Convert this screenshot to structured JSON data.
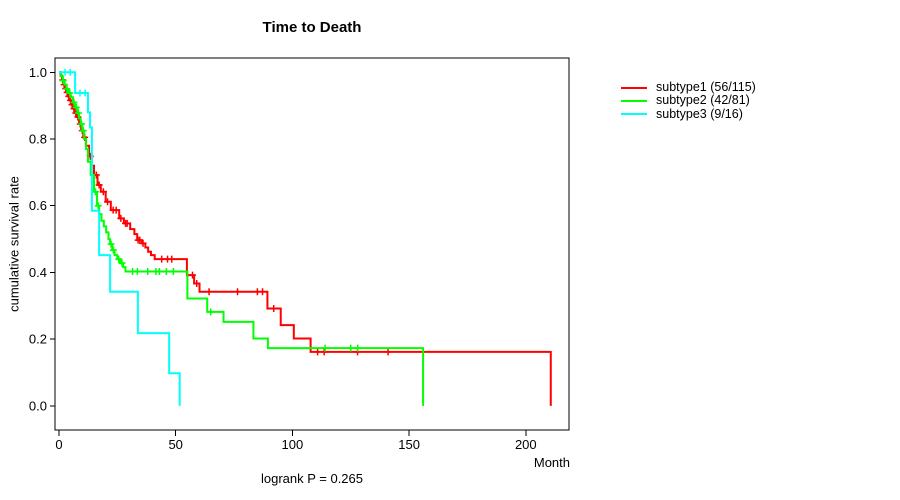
{
  "chart_data": {
    "type": "line",
    "variant": "kaplan-meier-step",
    "title": "Time to Death",
    "xlabel": "Month",
    "ylabel": "cumulative survival rate",
    "annotation": "logrank P = 0.265",
    "xlim": [
      0,
      220
    ],
    "ylim": [
      0.0,
      1.0
    ],
    "xticks": [
      0,
      50,
      100,
      150,
      200
    ],
    "yticks": [
      0.0,
      0.2,
      0.4,
      0.6,
      0.8,
      1.0
    ],
    "grid": false,
    "legend_position": "right-top",
    "series": [
      {
        "key": "subtype1",
        "name": "subtype1 (56/115)",
        "events": "56/115",
        "color": "#ff0000",
        "steps": [
          [
            0,
            1
          ],
          [
            0.7,
            0.99
          ],
          [
            1.3,
            0.977
          ],
          [
            2,
            0.963
          ],
          [
            2.6,
            0.951
          ],
          [
            3.2,
            0.94
          ],
          [
            3.9,
            0.928
          ],
          [
            4.5,
            0.916
          ],
          [
            5.2,
            0.903
          ],
          [
            6,
            0.891
          ],
          [
            6.8,
            0.878
          ],
          [
            7.7,
            0.866
          ],
          [
            8.6,
            0.845
          ],
          [
            9.5,
            0.825
          ],
          [
            10.4,
            0.805
          ],
          [
            11.5,
            0.78
          ],
          [
            12.9,
            0.748
          ],
          [
            14,
            0.72
          ],
          [
            15,
            0.692
          ],
          [
            16.5,
            0.662
          ],
          [
            17.9,
            0.642
          ],
          [
            20,
            0.612
          ],
          [
            22.2,
            0.587
          ],
          [
            25.8,
            0.562
          ],
          [
            27.8,
            0.547
          ],
          [
            30.5,
            0.53
          ],
          [
            32.3,
            0.515
          ],
          [
            33.5,
            0.497
          ],
          [
            35.5,
            0.487
          ],
          [
            37,
            0.475
          ],
          [
            38.2,
            0.462
          ],
          [
            39.4,
            0.452
          ],
          [
            41,
            0.44
          ],
          [
            54.8,
            0.392
          ],
          [
            57.9,
            0.367
          ],
          [
            60.2,
            0.342
          ],
          [
            89.3,
            0.292
          ],
          [
            95,
            0.242
          ],
          [
            100.6,
            0.202
          ],
          [
            107.8,
            0.162
          ],
          [
            210.7,
            0.162
          ],
          [
            210.7,
            0
          ]
        ],
        "censors": [
          [
            1.6,
            0.977
          ],
          [
            2.2,
            0.963
          ],
          [
            2.9,
            0.951
          ],
          [
            3.5,
            0.94
          ],
          [
            4.2,
            0.928
          ],
          [
            4.9,
            0.916
          ],
          [
            5.6,
            0.903
          ],
          [
            6.4,
            0.891
          ],
          [
            7.2,
            0.878
          ],
          [
            8.1,
            0.866
          ],
          [
            9.1,
            0.845
          ],
          [
            10,
            0.825
          ],
          [
            11,
            0.805
          ],
          [
            13.4,
            0.748
          ],
          [
            16,
            0.692
          ],
          [
            17.2,
            0.662
          ],
          [
            19,
            0.642
          ],
          [
            20.8,
            0.612
          ],
          [
            23.2,
            0.587
          ],
          [
            24.5,
            0.587
          ],
          [
            26.5,
            0.562
          ],
          [
            28.5,
            0.547
          ],
          [
            29.2,
            0.547
          ],
          [
            33.9,
            0.497
          ],
          [
            34.6,
            0.497
          ],
          [
            36,
            0.487
          ],
          [
            44,
            0.44
          ],
          [
            46.5,
            0.44
          ],
          [
            48.3,
            0.44
          ],
          [
            57.2,
            0.392
          ],
          [
            59,
            0.367
          ],
          [
            64.3,
            0.342
          ],
          [
            76.5,
            0.342
          ],
          [
            85,
            0.342
          ],
          [
            87.2,
            0.342
          ],
          [
            92,
            0.292
          ],
          [
            110.8,
            0.162
          ],
          [
            113.6,
            0.162
          ],
          [
            127.9,
            0.162
          ],
          [
            141,
            0.162
          ]
        ]
      },
      {
        "key": "subtype2",
        "name": "subtype2 (42/81)",
        "events": "42/81",
        "color": "#00ff00",
        "steps": [
          [
            0,
            1
          ],
          [
            0.8,
            0.988
          ],
          [
            1.6,
            0.975
          ],
          [
            2.4,
            0.963
          ],
          [
            3.2,
            0.95
          ],
          [
            4,
            0.938
          ],
          [
            5,
            0.925
          ],
          [
            6,
            0.91
          ],
          [
            7,
            0.895
          ],
          [
            8,
            0.878
          ],
          [
            8.6,
            0.862
          ],
          [
            9.3,
            0.845
          ],
          [
            10,
            0.825
          ],
          [
            10.8,
            0.8
          ],
          [
            11.6,
            0.77
          ],
          [
            12.4,
            0.732
          ],
          [
            13.6,
            0.692
          ],
          [
            15,
            0.642
          ],
          [
            16.3,
            0.6
          ],
          [
            17.2,
            0.575
          ],
          [
            18.2,
            0.555
          ],
          [
            19.2,
            0.538
          ],
          [
            20.2,
            0.52
          ],
          [
            21.2,
            0.5
          ],
          [
            21.9,
            0.485
          ],
          [
            22.8,
            0.467
          ],
          [
            23.8,
            0.452
          ],
          [
            25,
            0.44
          ],
          [
            26.3,
            0.428
          ],
          [
            27.5,
            0.416
          ],
          [
            28.5,
            0.403
          ],
          [
            55,
            0.322
          ],
          [
            63.5,
            0.282
          ],
          [
            70.5,
            0.252
          ],
          [
            83.3,
            0.202
          ],
          [
            89.5,
            0.173
          ],
          [
            156,
            0.173
          ],
          [
            156,
            0
          ]
        ],
        "censors": [
          [
            1.8,
            0.975
          ],
          [
            3.4,
            0.95
          ],
          [
            4.6,
            0.938
          ],
          [
            6.4,
            0.91
          ],
          [
            7.4,
            0.895
          ],
          [
            8.3,
            0.878
          ],
          [
            9.6,
            0.845
          ],
          [
            10.4,
            0.825
          ],
          [
            15.6,
            0.642
          ],
          [
            16.8,
            0.6
          ],
          [
            22.3,
            0.485
          ],
          [
            23.3,
            0.467
          ],
          [
            25.6,
            0.44
          ],
          [
            27,
            0.428
          ],
          [
            31.5,
            0.403
          ],
          [
            33.6,
            0.403
          ],
          [
            38,
            0.403
          ],
          [
            41.5,
            0.403
          ],
          [
            43,
            0.403
          ],
          [
            46,
            0.403
          ],
          [
            49,
            0.403
          ],
          [
            65,
            0.282
          ],
          [
            114,
            0.173
          ],
          [
            125,
            0.173
          ],
          [
            128,
            0.173
          ]
        ]
      },
      {
        "key": "subtype3",
        "name": "subtype3 (9/16)",
        "events": "9/16",
        "color": "#00ffff",
        "steps": [
          [
            0,
            1
          ],
          [
            6.9,
            0.938
          ],
          [
            12.4,
            0.88
          ],
          [
            13.3,
            0.835
          ],
          [
            14.1,
            0.585
          ],
          [
            17.2,
            0.452
          ],
          [
            21.9,
            0.342
          ],
          [
            33.8,
            0.218
          ],
          [
            47.2,
            0.098
          ],
          [
            51.7,
            0
          ]
        ],
        "censors": [
          [
            2.6,
            1
          ],
          [
            4.8,
            1
          ],
          [
            9,
            0.938
          ],
          [
            11.2,
            0.938
          ]
        ]
      }
    ]
  }
}
